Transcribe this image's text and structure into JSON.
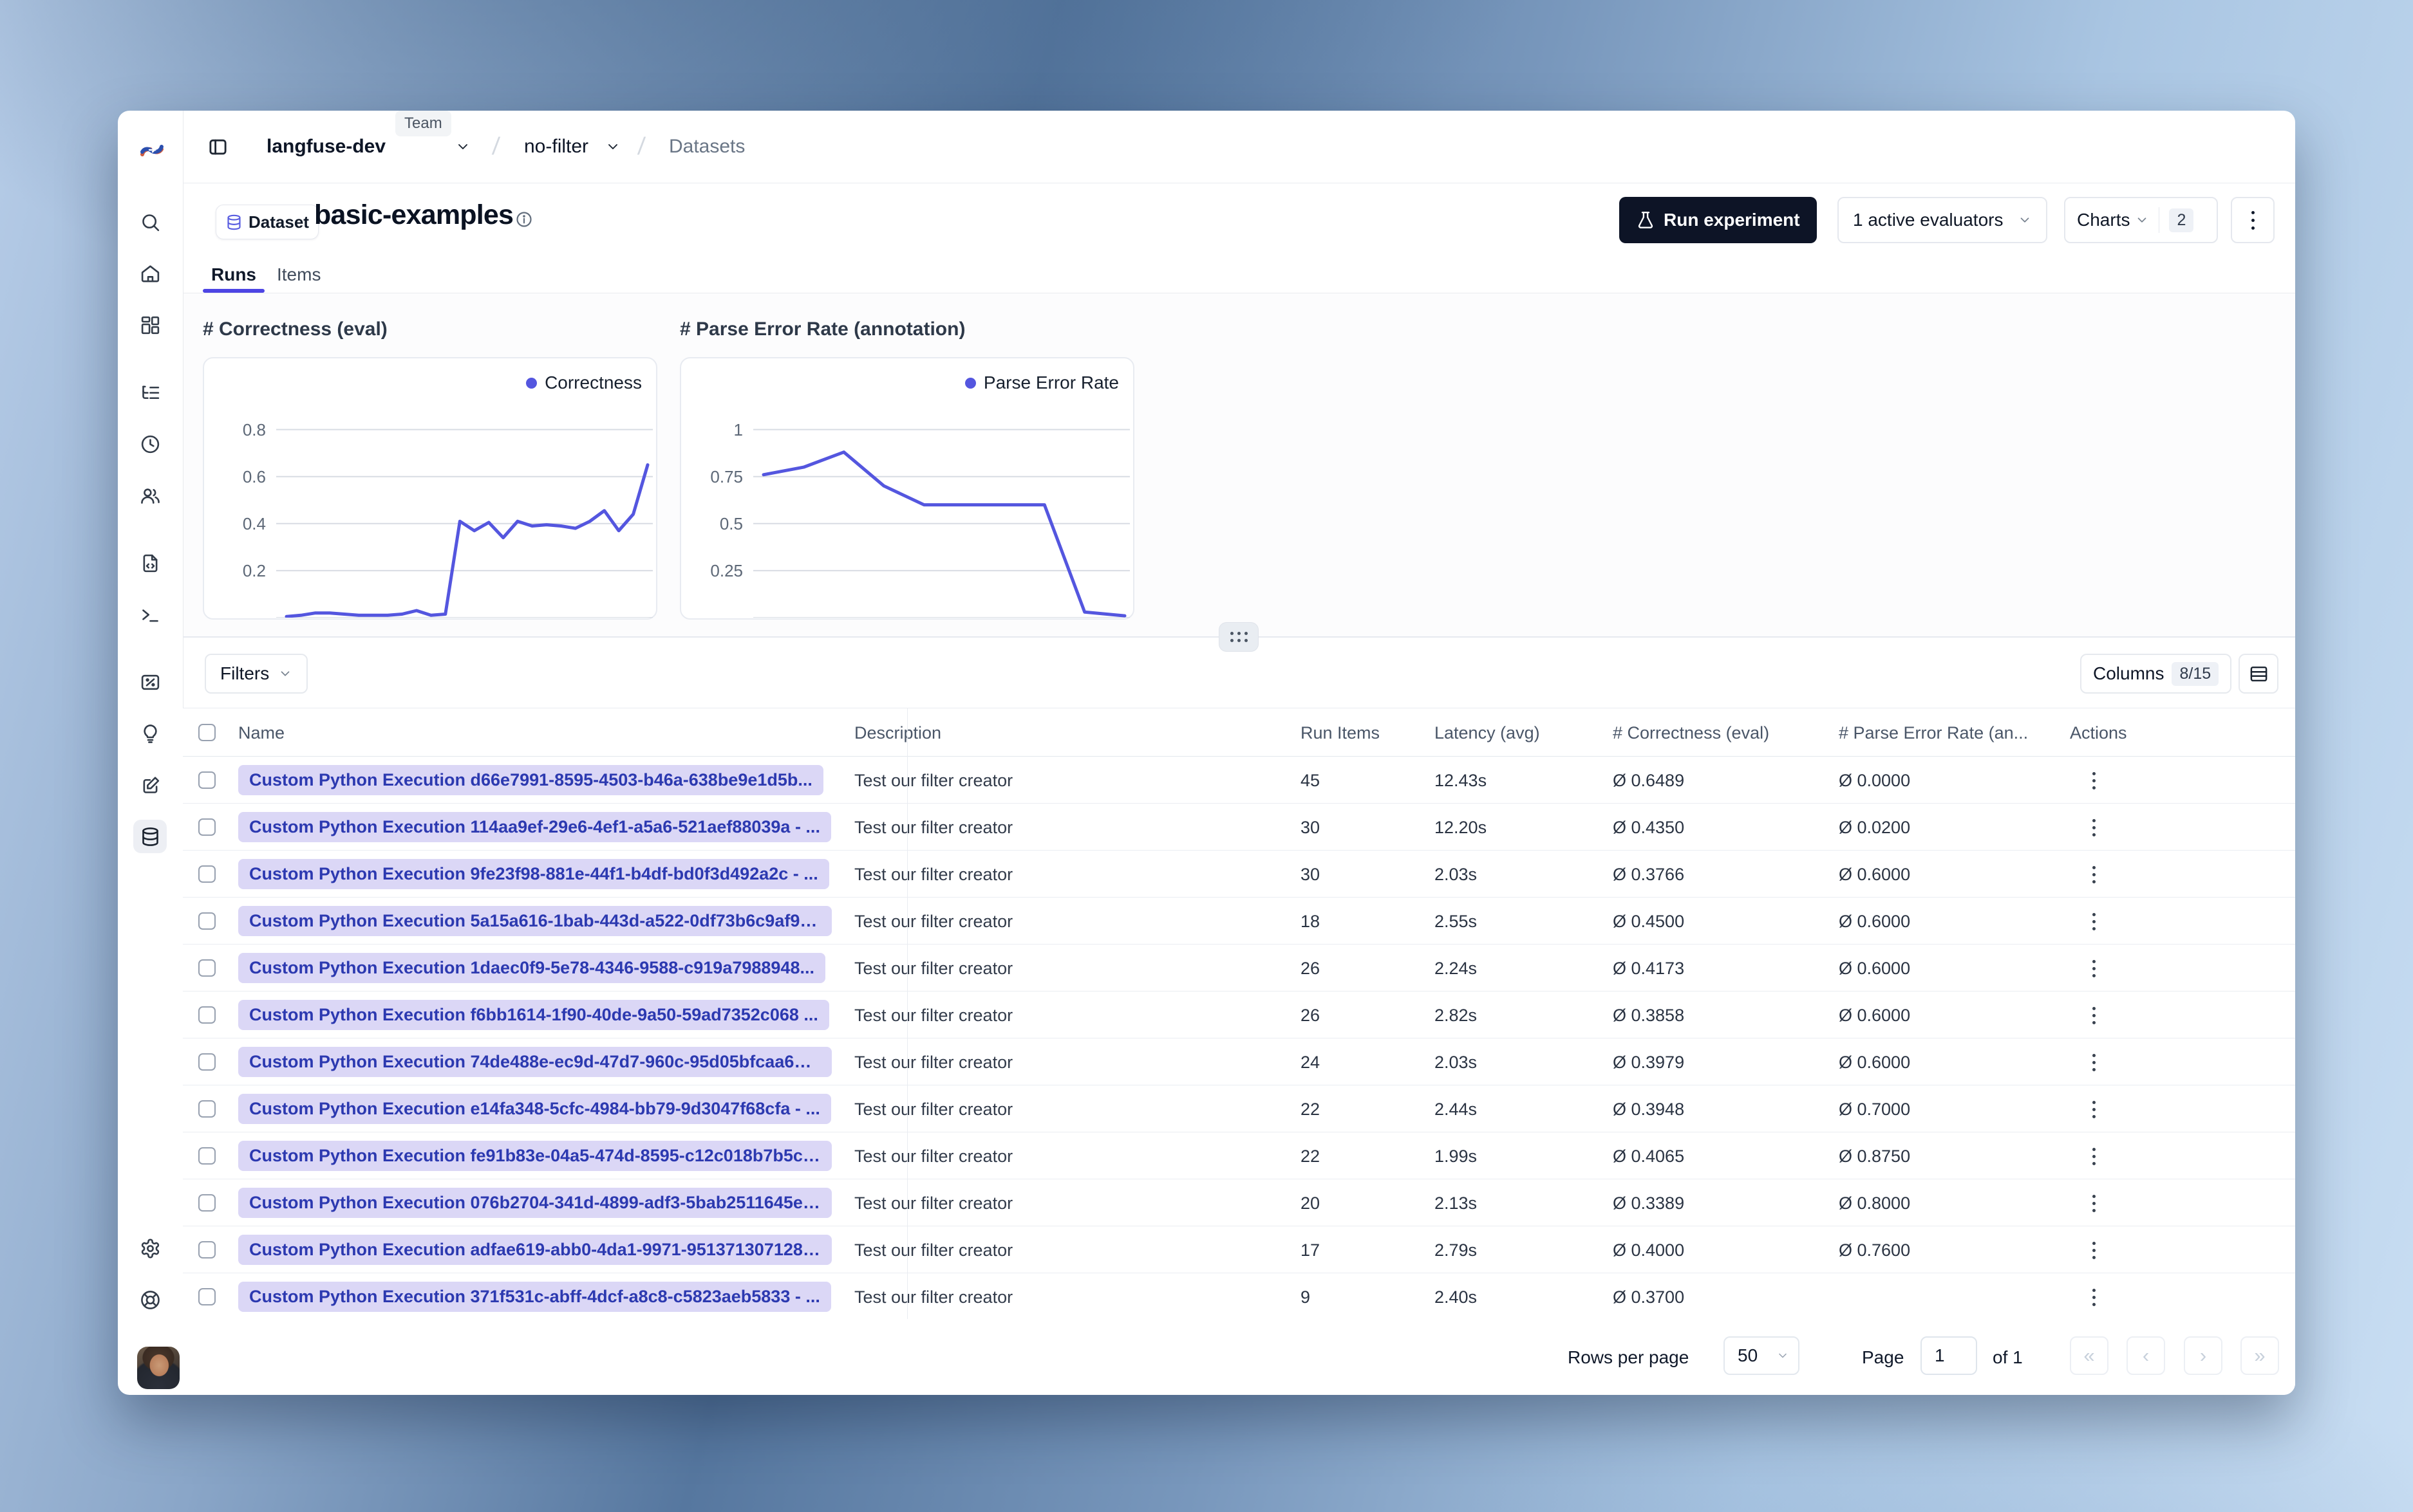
{
  "header": {
    "org": "langfuse-dev",
    "org_badge": "Team",
    "project": "no-filter",
    "section": "Datasets"
  },
  "dataset": {
    "badge_label": "Dataset",
    "title": "basic-examples"
  },
  "tabs": [
    {
      "label": "Runs",
      "active": true
    },
    {
      "label": "Items",
      "active": false
    }
  ],
  "toolbar": {
    "run_experiment": "Run experiment",
    "evaluators": "1 active evaluators",
    "charts_label": "Charts",
    "charts_count": "2"
  },
  "chart_data": [
    {
      "type": "line",
      "title": "# Correctness (eval)",
      "legend": "Correctness",
      "color": "#5456df",
      "ylim": [
        0,
        1.1
      ],
      "yticks": [
        0.2,
        0.4,
        0.6,
        0.8
      ],
      "grid": true,
      "legend_position": "top-right",
      "values": [
        0.005,
        0.01,
        0.02,
        0.02,
        0.015,
        0.01,
        0.01,
        0.01,
        0.015,
        0.03,
        0.01,
        0.015,
        0.41,
        0.37,
        0.405,
        0.34,
        0.41,
        0.39,
        0.395,
        0.39,
        0.38,
        0.41,
        0.455,
        0.37,
        0.44,
        0.65
      ]
    },
    {
      "type": "line",
      "title": "# Parse Error Rate (annotation)",
      "legend": "Parse Error Rate",
      "color": "#5456df",
      "ylim": [
        0,
        1.375
      ],
      "yticks": [
        0.25,
        0.5,
        0.75,
        1
      ],
      "grid": true,
      "legend_position": "top-right",
      "values": [
        0.76,
        0.8,
        0.88,
        0.7,
        0.6,
        0.6,
        0.6,
        0.6,
        0.03,
        0.01
      ]
    }
  ],
  "table": {
    "filters_label": "Filters",
    "columns_label": "Columns",
    "columns_badge": "8/15",
    "headers": [
      "Name",
      "Description",
      "Run Items",
      "Latency (avg)",
      "# Correctness (eval)",
      "# Parse Error Rate (an...",
      "Actions"
    ],
    "rows": [
      {
        "name": "Custom Python Execution d66e7991-8595-4503-b46a-638be9e1d5b...",
        "description": "Test our filter creator",
        "run_items": "45",
        "latency": "12.43s",
        "correctness": "Ø 0.6489",
        "parse_error_rate": "Ø 0.0000"
      },
      {
        "name": "Custom Python Execution 114aa9ef-29e6-4ef1-a5a6-521aef88039a - ...",
        "description": "Test our filter creator",
        "run_items": "30",
        "latency": "12.20s",
        "correctness": "Ø 0.4350",
        "parse_error_rate": "Ø 0.0200"
      },
      {
        "name": "Custom Python Execution 9fe23f98-881e-44f1-b4df-bd0f3d492a2c - ...",
        "description": "Test our filter creator",
        "run_items": "30",
        "latency": "2.03s",
        "correctness": "Ø 0.3766",
        "parse_error_rate": "Ø 0.6000"
      },
      {
        "name": "Custom Python Execution 5a15a616-1bab-443d-a522-0df73b6c9af9 - ...",
        "description": "Test our filter creator",
        "run_items": "18",
        "latency": "2.55s",
        "correctness": "Ø 0.4500",
        "parse_error_rate": "Ø 0.6000"
      },
      {
        "name": "Custom Python Execution 1daec0f9-5e78-4346-9588-c919a7988948...",
        "description": "Test our filter creator",
        "run_items": "26",
        "latency": "2.24s",
        "correctness": "Ø 0.4173",
        "parse_error_rate": "Ø 0.6000"
      },
      {
        "name": "Custom Python Execution f6bb1614-1f90-40de-9a50-59ad7352c068 ...",
        "description": "Test our filter creator",
        "run_items": "26",
        "latency": "2.82s",
        "correctness": "Ø 0.3858",
        "parse_error_rate": "Ø 0.6000"
      },
      {
        "name": "Custom Python Execution 74de488e-ec9d-47d7-960c-95d05bfcaa6a ...",
        "description": "Test our filter creator",
        "run_items": "24",
        "latency": "2.03s",
        "correctness": "Ø 0.3979",
        "parse_error_rate": "Ø 0.6000"
      },
      {
        "name": "Custom Python Execution e14fa348-5cfc-4984-bb79-9d3047f68cfa - ...",
        "description": "Test our filter creator",
        "run_items": "22",
        "latency": "2.44s",
        "correctness": "Ø 0.3948",
        "parse_error_rate": "Ø 0.7000"
      },
      {
        "name": "Custom Python Execution fe91b83e-04a5-474d-8595-c12c018b7b5c ...",
        "description": "Test our filter creator",
        "run_items": "22",
        "latency": "1.99s",
        "correctness": "Ø 0.4065",
        "parse_error_rate": "Ø 0.8750"
      },
      {
        "name": "Custom Python Execution 076b2704-341d-4899-adf3-5bab2511645e ...",
        "description": "Test our filter creator",
        "run_items": "20",
        "latency": "2.13s",
        "correctness": "Ø 0.3389",
        "parse_error_rate": "Ø 0.8000"
      },
      {
        "name": "Custom Python Execution adfae619-abb0-4da1-9971-951371307128 - ...",
        "description": "Test our filter creator",
        "run_items": "17",
        "latency": "2.79s",
        "correctness": "Ø 0.4000",
        "parse_error_rate": "Ø 0.7600"
      },
      {
        "name": "Custom Python Execution 371f531c-abff-4dcf-a8c8-c5823aeb5833 - ...",
        "description": "Test our filter creator",
        "run_items": "9",
        "latency": "2.40s",
        "correctness": "Ø 0.3700",
        "parse_error_rate": ""
      }
    ]
  },
  "pagination": {
    "rows_per_page_label": "Rows per page",
    "rows_per_page_value": "50",
    "page_label": "Page",
    "page_value": "1",
    "of_label": "of 1",
    "first": "«",
    "prev": "‹",
    "next": "›",
    "last": "»"
  },
  "sidebar": {
    "items": [
      {
        "icon": "search-icon"
      },
      {
        "icon": "home-icon"
      },
      {
        "icon": "dashboard-icon"
      },
      {
        "icon": "tracing-icon"
      },
      {
        "icon": "sessions-icon"
      },
      {
        "icon": "users-icon"
      },
      {
        "icon": "prompts-icon"
      },
      {
        "icon": "playground-icon"
      },
      {
        "icon": "scores-icon"
      },
      {
        "icon": "insights-icon"
      },
      {
        "icon": "annotation-icon"
      },
      {
        "icon": "datasets-icon",
        "active": true
      },
      {
        "icon": "settings-icon"
      },
      {
        "icon": "support-icon"
      }
    ]
  },
  "colors": {
    "accent": "#5456df",
    "run_button_bg": "#0d1426",
    "name_pill_bg": "#dbd7f6",
    "name_pill_text": "#2c39b0",
    "tab_underline": "#4d45e4"
  }
}
